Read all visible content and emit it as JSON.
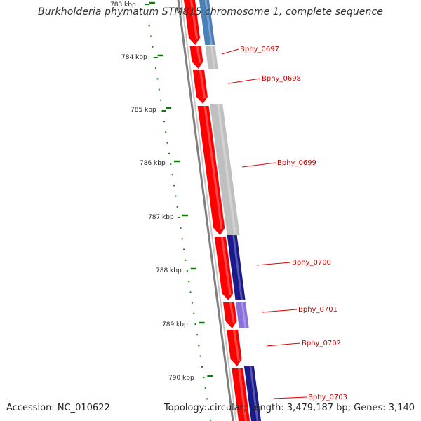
{
  "title": "Burkholderia phymatum STM815 chromosome 1, complete sequence",
  "footer": {
    "accession": "Accession: NC_010622",
    "summary": "Topology: circular; Length: 3,479,187 bp; Genes: 3,140"
  },
  "colors": {
    "forward_strand": "#ff0000",
    "gray_feature": "#bfbfbf",
    "steel_blue": "#4a80b8",
    "navy": "#1a1a8c",
    "lavender": "#8a70d8",
    "backbone": "#888888",
    "tick": "#008000",
    "label": "#cc0000"
  },
  "scale_labels": [
    "783 kbp",
    "784 kbp",
    "785 kbp",
    "786 kbp",
    "787 kbp",
    "788 kbp",
    "789 kbp",
    "790 kbp"
  ],
  "gene_labels": [
    "Bphy_0697",
    "Bphy_0698",
    "Bphy_0699",
    "Bphy_0700",
    "Bphy_0701",
    "Bphy_0702",
    "Bphy_0703"
  ]
}
